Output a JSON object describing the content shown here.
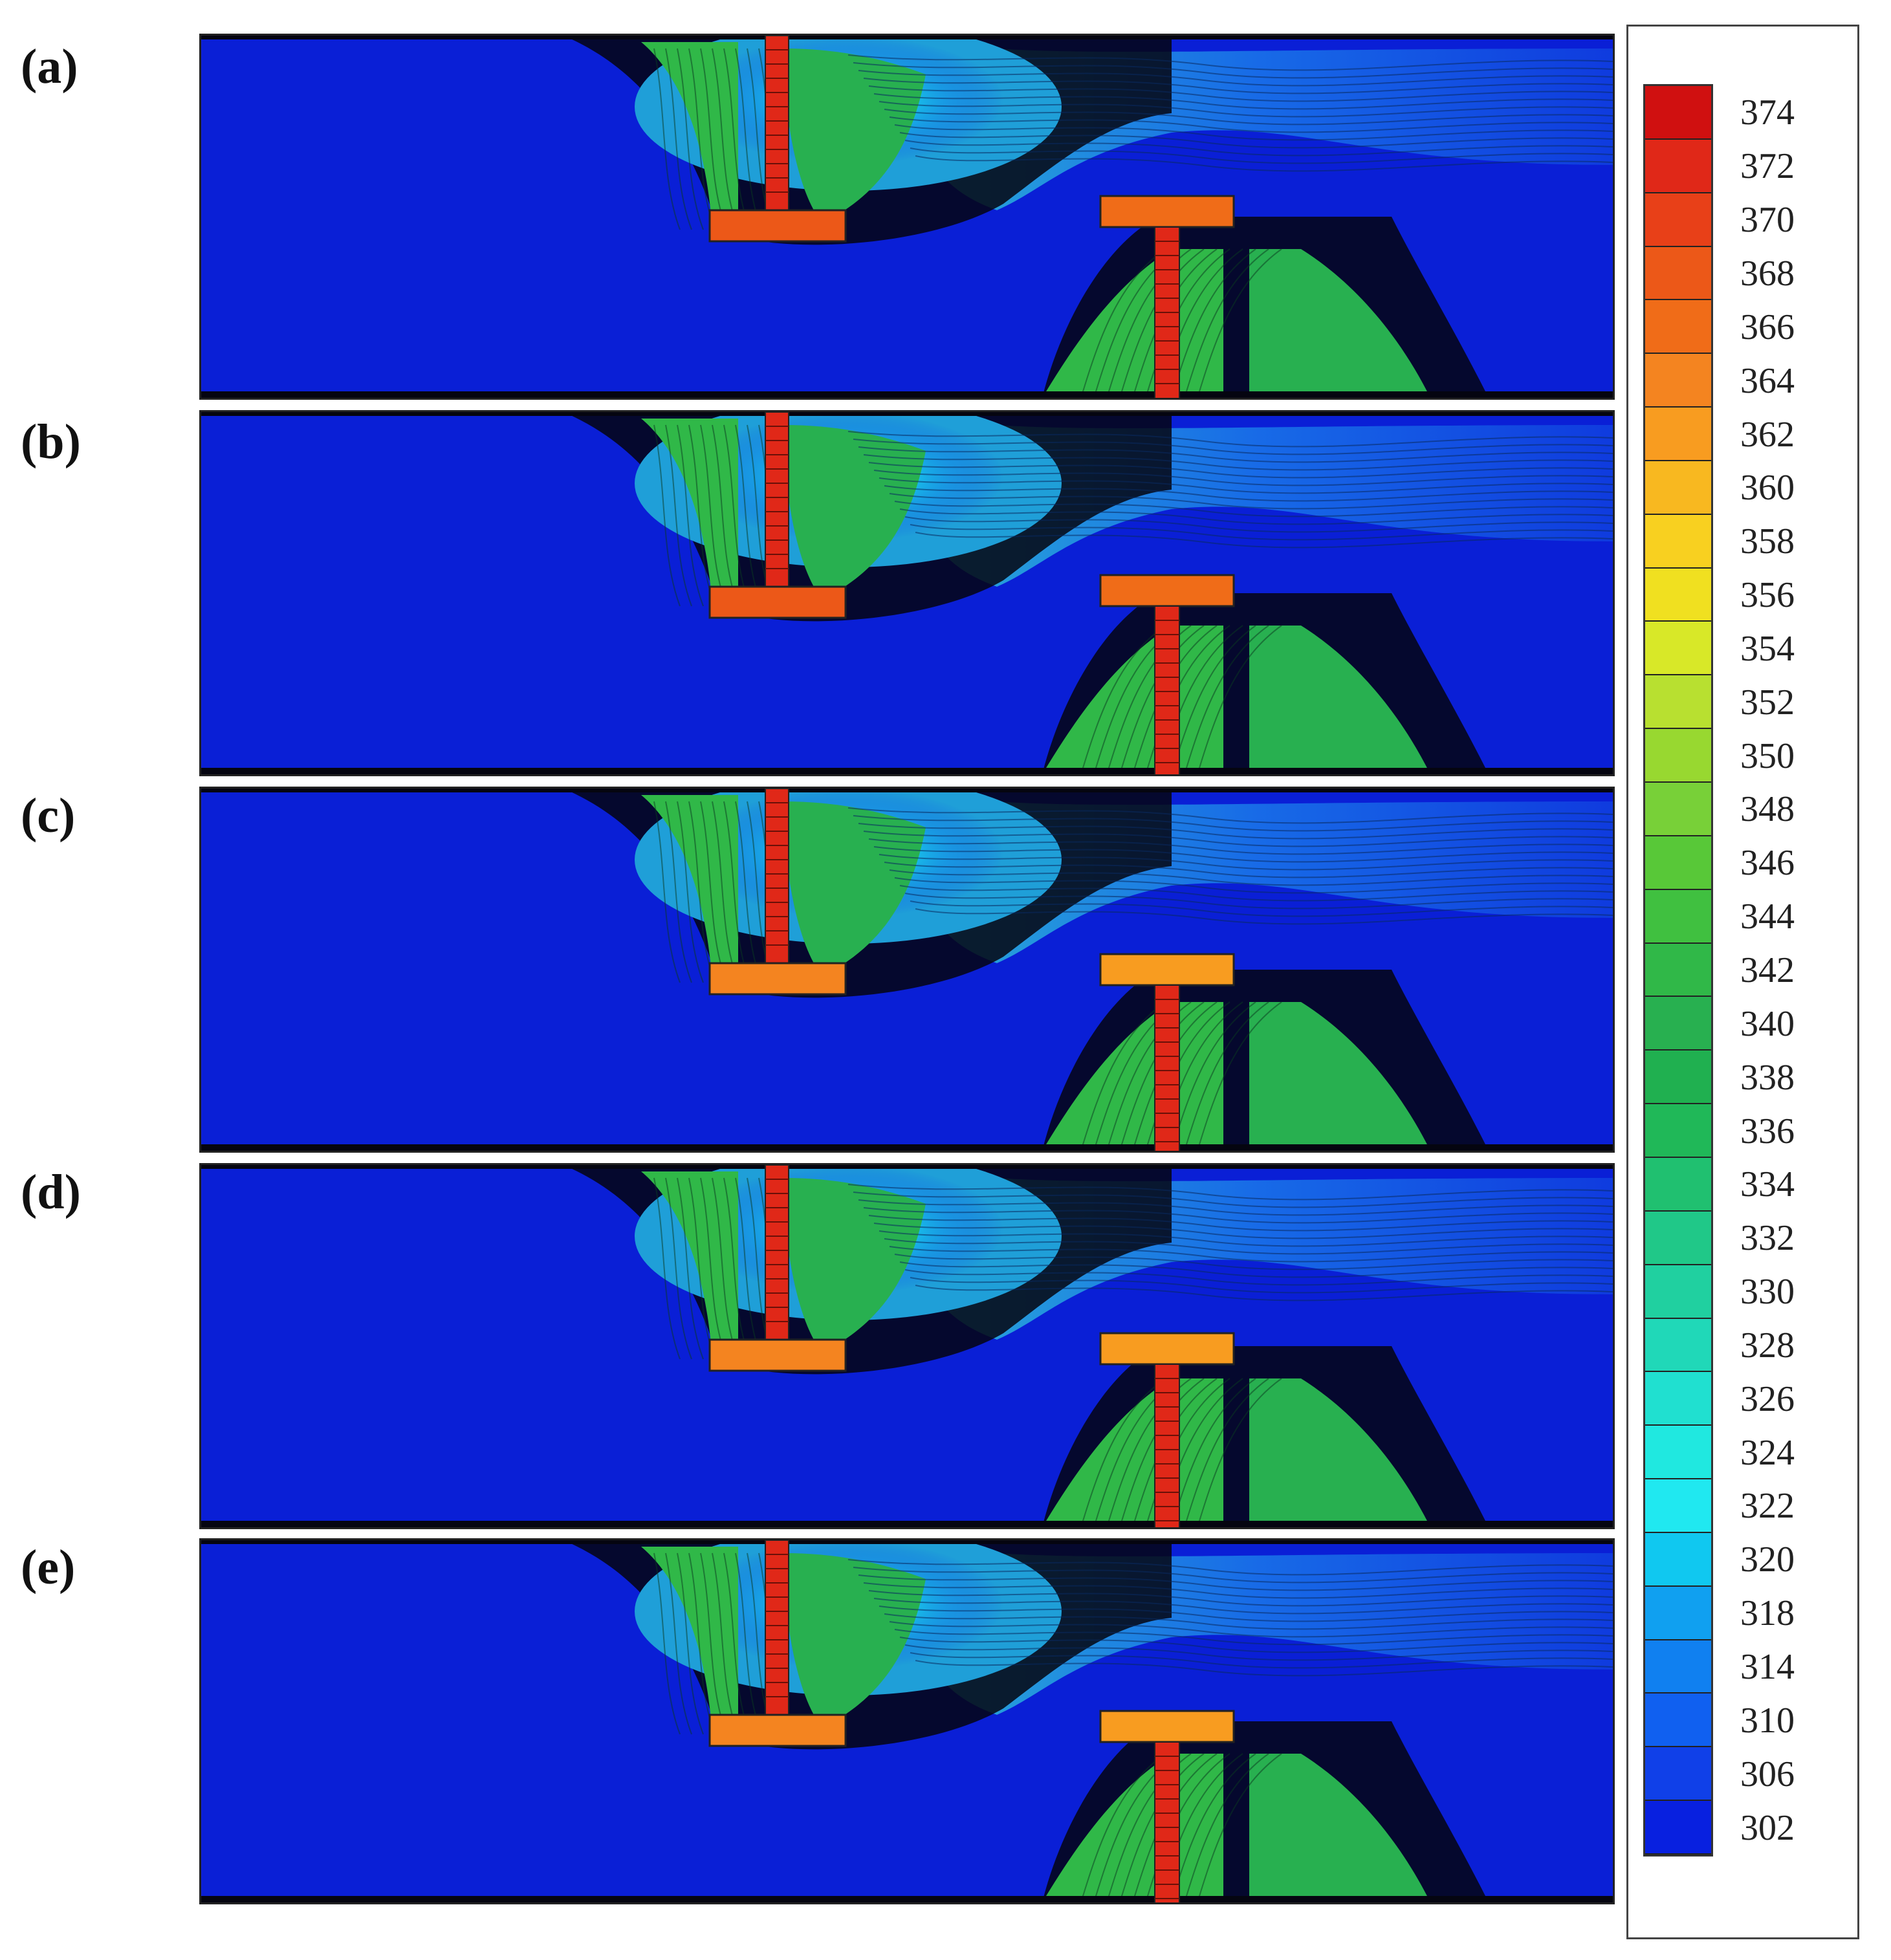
{
  "panels": [
    {
      "label": "(a)"
    },
    {
      "label": "(b)"
    },
    {
      "label": "(c)"
    },
    {
      "label": "(d)"
    },
    {
      "label": "(e)"
    }
  ],
  "legend": {
    "ticks": [
      "374",
      "372",
      "370",
      "368",
      "366",
      "364",
      "362",
      "360",
      "358",
      "356",
      "354",
      "352",
      "350",
      "348",
      "346",
      "344",
      "342",
      "340",
      "338",
      "336",
      "334",
      "332",
      "330",
      "328",
      "326",
      "324",
      "322",
      "320",
      "318",
      "314",
      "310",
      "306",
      "302"
    ],
    "colors": [
      "#d01010",
      "#e02818",
      "#e84018",
      "#ec5818",
      "#f06c18",
      "#f48420",
      "#f89c20",
      "#f8b820",
      "#f8d020",
      "#f0e020",
      "#d8e828",
      "#b8e030",
      "#98d830",
      "#78d038",
      "#58c838",
      "#40c040",
      "#30b848",
      "#28b050",
      "#20b050",
      "#20b858",
      "#20c070",
      "#20c888",
      "#20d0a0",
      "#20d8b8",
      "#20e0d0",
      "#20e8e0",
      "#20e8f0",
      "#10c8f0",
      "#10a0f0",
      "#1080f0",
      "#1060f0",
      "#1040e8",
      "#0820e0"
    ]
  }
}
